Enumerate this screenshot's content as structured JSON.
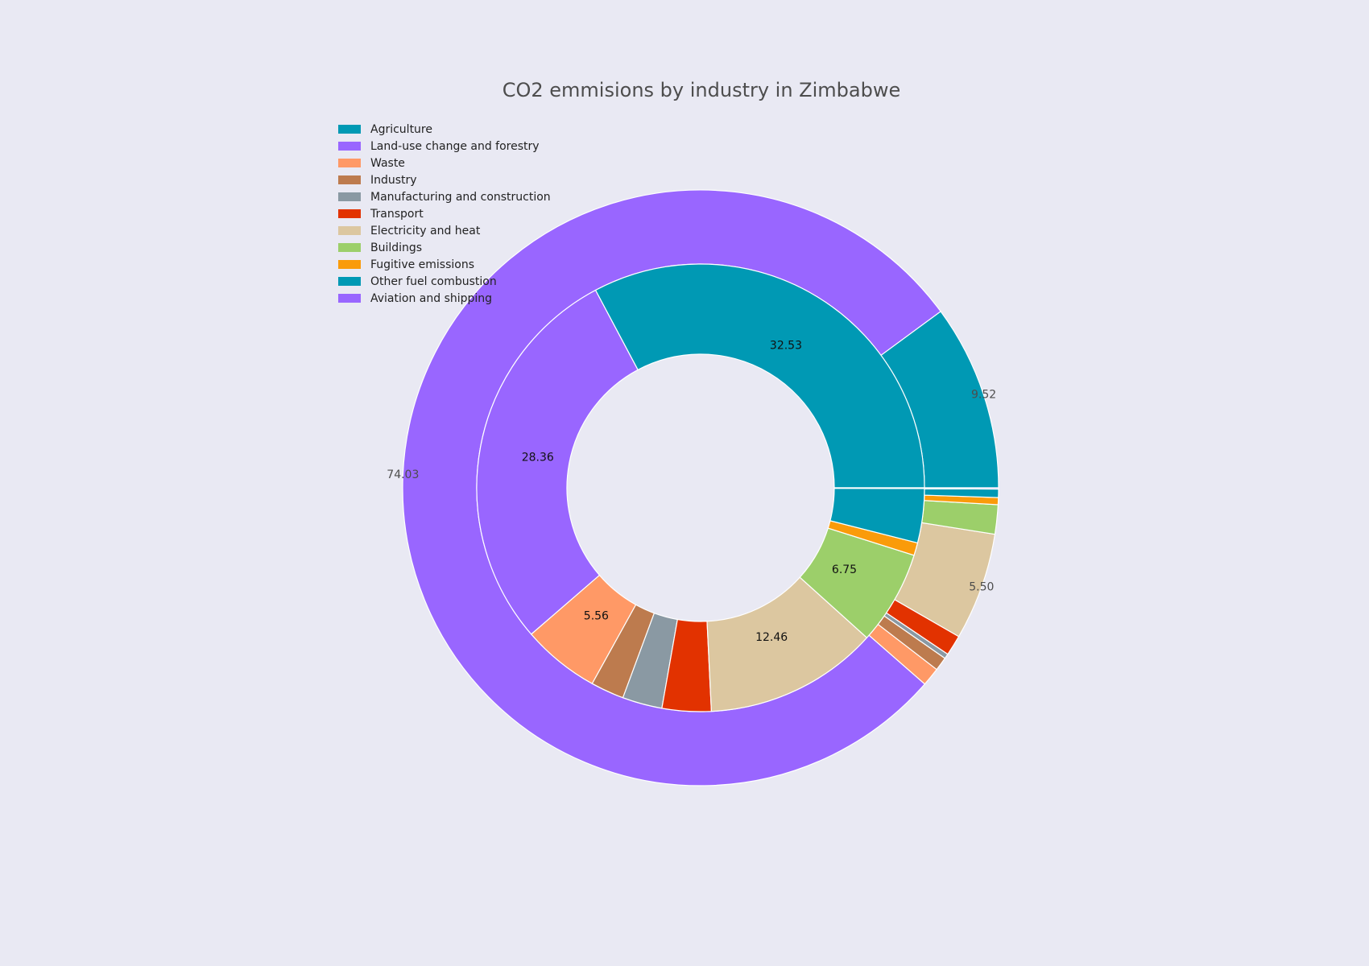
{
  "chart_data": {
    "type": "pie",
    "subtype": "nested-donut",
    "title": "CO2 emmisions by industry in Zimbabwe",
    "legend_position": "top-left",
    "outer_ring": {
      "labels": [
        "Agriculture",
        "Land-use change and forestry",
        "Waste",
        "Industry",
        "Manufacturing and construction",
        "Transport",
        "Electricity and heat",
        "Buildings",
        "Fugitive emissions",
        "Other fuel combustion",
        "Aviation and shipping"
      ],
      "values": [
        9.52,
        74.03,
        0.95,
        0.7,
        0.25,
        1.05,
        5.5,
        1.5,
        0.36,
        0.43,
        0.06
      ],
      "visible_value_labels": [
        "9.52",
        "74.03",
        "5.50"
      ]
    },
    "inner_ring": {
      "labels": [
        "Agriculture",
        "Land-use change and forestry",
        "Waste",
        "Industry",
        "Manufacturing and construction",
        "Transport",
        "Electricity and heat",
        "Buildings",
        "Fugitive emissions",
        "Other fuel combustion",
        "Aviation and shipping"
      ],
      "values": [
        32.53,
        28.36,
        5.56,
        2.39,
        2.85,
        3.51,
        12.46,
        6.75,
        0.91,
        3.88,
        0.05
      ],
      "visible_value_labels": [
        "32.53",
        "28.36",
        "5.56",
        "12.46",
        "6.75"
      ]
    },
    "colors": [
      "#0099b4",
      "#9966ff",
      "#ff9966",
      "#bd7b4e",
      "#8a99a3",
      "#e23200",
      "#dcc7a0",
      "#9ccf6a",
      "#fa9b0a",
      "#0099b4",
      "#9966ff"
    ]
  }
}
